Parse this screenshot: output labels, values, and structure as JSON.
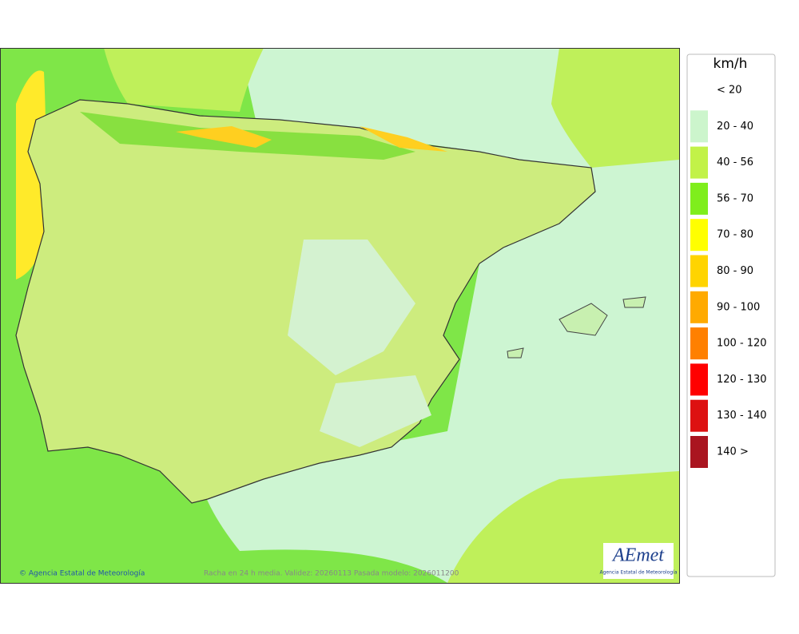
{
  "map": {
    "caption": "Racha en 24 h media. Validez: 20260113 Pasada modelo: 2026011200",
    "credit": "© Agencia Estatal de Meteorología",
    "logo": {
      "text": "AEmet",
      "subtitle": "Agencia Estatal de Meteorología"
    },
    "legend": {
      "title": "km/h",
      "items": [
        {
          "label": "< 20"
        },
        {
          "label": "20 - 40",
          "color": "#ccf5cc"
        },
        {
          "label": "40 - 56",
          "color": "#c2f248"
        },
        {
          "label": "56 - 70",
          "color": "#7fee1c"
        },
        {
          "label": "70 - 80",
          "color": "#ffff00"
        },
        {
          "label": "80 - 90",
          "color": "#ffd400"
        },
        {
          "label": "90 - 100",
          "color": "#ffaa00"
        },
        {
          "label": "100 - 120",
          "color": "#ff8000"
        },
        {
          "label": "120 - 130",
          "color": "#ff0000"
        },
        {
          "label": "130 - 140",
          "color": "#dd1111"
        },
        {
          "label": "140 >",
          "color": "#aa1520"
        }
      ]
    }
  }
}
